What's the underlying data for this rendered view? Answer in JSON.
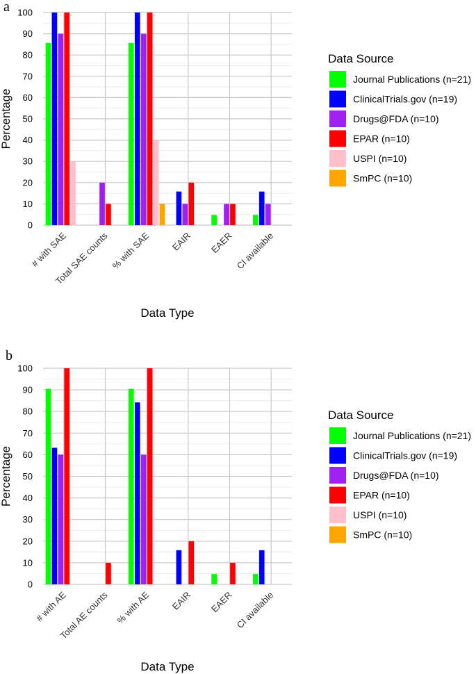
{
  "chart_data": [
    {
      "type": "bar",
      "panel_label": "a",
      "xlabel": "Data Type",
      "ylabel": "Percentage",
      "ylim": [
        0,
        100
      ],
      "yticks": [
        0,
        10,
        20,
        30,
        40,
        50,
        60,
        70,
        80,
        90,
        100
      ],
      "categories": [
        "# with SAE",
        "Total SAE counts",
        "% with SAE",
        "EAIR",
        "EAER",
        "CI available"
      ],
      "legend_title": "Data Source",
      "legend_position": "right",
      "grid": true,
      "series": [
        {
          "name": "Journal Publications (n=21)",
          "color": "#00ff00",
          "values": [
            85.7,
            0,
            85.7,
            0,
            4.8,
            4.8
          ]
        },
        {
          "name": "ClinicalTrials.gov (n=19)",
          "color": "#0000ff",
          "values": [
            100,
            0,
            100,
            15.8,
            0,
            15.8
          ]
        },
        {
          "name": "Drugs@FDA (n=10)",
          "color": "#a020f0",
          "values": [
            90,
            20,
            90,
            10,
            10,
            10
          ]
        },
        {
          "name": "EPAR (n=10)",
          "color": "#ff0000",
          "values": [
            100,
            10,
            100,
            20,
            10,
            0
          ]
        },
        {
          "name": "USPI (n=10)",
          "color": "#ffc0cb",
          "values": [
            30,
            0,
            40,
            0,
            0,
            0
          ]
        },
        {
          "name": "SmPC (n=10)",
          "color": "#ffa500",
          "values": [
            0,
            0,
            10,
            0,
            0,
            0
          ]
        }
      ]
    },
    {
      "type": "bar",
      "panel_label": "b",
      "xlabel": "Data Type",
      "ylabel": "Percentage",
      "ylim": [
        0,
        100
      ],
      "yticks": [
        0,
        10,
        20,
        30,
        40,
        50,
        60,
        70,
        80,
        90,
        100
      ],
      "categories": [
        "# with AE",
        "Total AE counts",
        "% with AE",
        "EAIR",
        "EAER",
        "CI available"
      ],
      "legend_title": "Data Source",
      "legend_position": "right",
      "grid": true,
      "series": [
        {
          "name": "Journal Publications (n=21)",
          "color": "#00ff00",
          "values": [
            90.5,
            0,
            90.5,
            0,
            4.8,
            4.8
          ]
        },
        {
          "name": "ClinicalTrials.gov (n=19)",
          "color": "#0000ff",
          "values": [
            63.2,
            0,
            84.2,
            15.8,
            0,
            15.8
          ]
        },
        {
          "name": "Drugs@FDA (n=10)",
          "color": "#a020f0",
          "values": [
            60,
            0,
            60,
            0,
            0,
            0
          ]
        },
        {
          "name": "EPAR (n=10)",
          "color": "#ff0000",
          "values": [
            100,
            10,
            100,
            20,
            10,
            0
          ]
        },
        {
          "name": "USPI (n=10)",
          "color": "#ffc0cb",
          "values": [
            0,
            0,
            0,
            0,
            0,
            0
          ]
        },
        {
          "name": "SmPC (n=10)",
          "color": "#ffa500",
          "values": [
            0,
            0,
            0,
            0,
            0,
            0
          ]
        }
      ]
    }
  ]
}
